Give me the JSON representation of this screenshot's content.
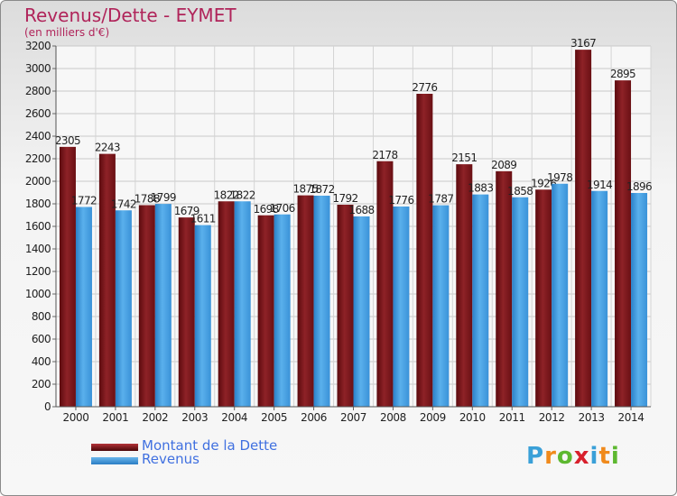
{
  "title": "Revenus/Dette - EYMET",
  "subtitle": "(en milliers d'€)",
  "brand": {
    "letters": [
      "P",
      "r",
      "o",
      "x",
      "i",
      "t",
      "i"
    ],
    "colors": [
      "#3aa0d8",
      "#f08a1c",
      "#5db830",
      "#d8202c",
      "#3aa0d8",
      "#f08a1c",
      "#5db830"
    ]
  },
  "colors": {
    "dette": "#7a1418",
    "revenus": "#3d95d8",
    "title": "#b0245a",
    "legend_text": "#4070e0"
  },
  "chart_data": {
    "type": "bar",
    "title": "Revenus/Dette - EYMET",
    "subtitle": "(en milliers d'€)",
    "categories": [
      "2000",
      "2001",
      "2002",
      "2003",
      "2004",
      "2005",
      "2006",
      "2007",
      "2008",
      "2009",
      "2010",
      "2011",
      "2012",
      "2013",
      "2014"
    ],
    "series": [
      {
        "name": "Montant de la Dette",
        "color": "#7a1418",
        "values": [
          2305,
          2243,
          1788,
          1679,
          1822,
          1698,
          1875,
          1792,
          2178,
          2776,
          2151,
          2089,
          1926,
          3167,
          2895
        ]
      },
      {
        "name": "Revenus",
        "color": "#3d95d8",
        "values": [
          1772,
          1742,
          1799,
          1611,
          1822,
          1706,
          1872,
          1688,
          1776,
          1787,
          1883,
          1858,
          1978,
          1914,
          1896
        ]
      }
    ],
    "ylim": [
      0,
      3200
    ],
    "yticks": [
      0,
      200,
      400,
      600,
      800,
      1000,
      1200,
      1400,
      1600,
      1800,
      2000,
      2200,
      2400,
      2600,
      2800,
      3000,
      3200
    ],
    "grid": true,
    "legend_position": "bottom-left"
  }
}
